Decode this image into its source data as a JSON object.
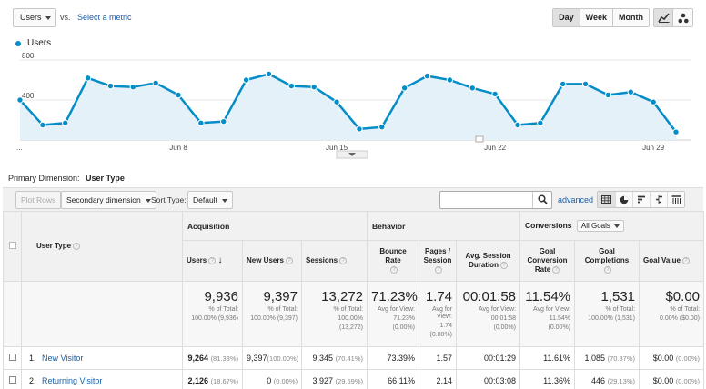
{
  "controls": {
    "metric_select": "Users",
    "vs_label": "vs.",
    "select_metric_link": "Select a metric",
    "range_buttons": [
      "Day",
      "Week",
      "Month"
    ],
    "active_range": "Day",
    "view_icons": [
      "line-chart-icon",
      "motion-chart-icon"
    ]
  },
  "chart_data": {
    "type": "area",
    "series": [
      {
        "name": "Users",
        "values": [
          400,
          150,
          170,
          620,
          540,
          530,
          570,
          450,
          170,
          185,
          600,
          660,
          540,
          530,
          380,
          110,
          130,
          520,
          640,
          600,
          520,
          460,
          150,
          170,
          560,
          560,
          450,
          480,
          380,
          80
        ]
      }
    ],
    "x_tick_labels": [
      "...",
      "Jun 8",
      "Jun 15",
      "Jun 22",
      "Jun 29"
    ],
    "y_tick_labels": [
      "800",
      "400"
    ],
    "ylim": [
      0,
      800
    ],
    "grid": true,
    "color": "#058dc7"
  },
  "primary_dimension": {
    "label": "Primary Dimension:",
    "value": "User Type"
  },
  "toolbar": {
    "plot_rows": "Plot Rows",
    "secondary_dimension": "Secondary dimension",
    "sort_type_label": "Sort Type:",
    "sort_type_value": "Default",
    "search_placeholder": "",
    "advanced_link": "advanced",
    "table_view_icons": [
      "data-table-icon",
      "pie-icon",
      "performance-icon",
      "comparison-icon",
      "pivot-icon"
    ]
  },
  "table": {
    "dimension_header": "User Type",
    "groups": {
      "acquisition": "Acquisition",
      "behavior": "Behavior",
      "conversions": "Conversions",
      "goals_select": "All Goals"
    },
    "columns": {
      "users": "Users",
      "new_users": "New Users",
      "sessions": "Sessions",
      "bounce_rate": "Bounce Rate",
      "pages_session": "Pages / Session",
      "avg_session": "Avg. Session Duration",
      "goal_conv": "Goal Conversion Rate",
      "goal_compl": "Goal Completions",
      "goal_value": "Goal Value"
    },
    "totals": {
      "users": {
        "value": "9,936",
        "l1": "% of Total:",
        "l2": "100.00% (9,936)",
        "l3": ""
      },
      "new_users": {
        "value": "9,397",
        "l1": "% of Total:",
        "l2": "100.00% (9,397)",
        "l3": ""
      },
      "sessions": {
        "value": "13,272",
        "l1": "% of Total:",
        "l2": "100.00%",
        "l3": "(13,272)"
      },
      "bounce_rate": {
        "value": "71.23%",
        "l1": "Avg for View:",
        "l2": "71.23%",
        "l3": "(0.00%)"
      },
      "pages_session": {
        "value": "1.74",
        "l1": "Avg for View:",
        "l2": "1.74",
        "l3": "(0.00%)"
      },
      "avg_session": {
        "value": "00:01:58",
        "l1": "Avg for View:",
        "l2": "00:01:58",
        "l3": "(0.00%)"
      },
      "goal_conv": {
        "value": "11.54%",
        "l1": "Avg for View:",
        "l2": "11.54%",
        "l3": "(0.00%)"
      },
      "goal_compl": {
        "value": "1,531",
        "l1": "% of Total:",
        "l2": "100.00% (1,531)",
        "l3": ""
      },
      "goal_value": {
        "value": "$0.00",
        "l1": "% of Total:",
        "l2": "0.00% ($0.00)",
        "l3": ""
      }
    },
    "rows": [
      {
        "num": "1.",
        "type": "New Visitor",
        "users": "9,264",
        "users_pct": "(81.33%)",
        "new_users": "9,397",
        "new_users_pct": "(100.00%)",
        "sessions": "9,345",
        "sessions_pct": "(70.41%)",
        "bounce_rate": "73.39%",
        "pages_session": "1.57",
        "avg_session": "00:01:29",
        "goal_conv": "11.61%",
        "goal_compl": "1,085",
        "goal_compl_pct": "(70.87%)",
        "goal_value": "$0.00",
        "goal_value_pct": "(0.00%)"
      },
      {
        "num": "2.",
        "type": "Returning Visitor",
        "users": "2,126",
        "users_pct": "(18.67%)",
        "new_users": "0",
        "new_users_pct": "(0.00%)",
        "sessions": "3,927",
        "sessions_pct": "(29.59%)",
        "bounce_rate": "66.11%",
        "pages_session": "2.14",
        "avg_session": "00:03:08",
        "goal_conv": "11.36%",
        "goal_compl": "446",
        "goal_compl_pct": "(29.13%)",
        "goal_value": "$0.00",
        "goal_value_pct": "(0.00%)"
      }
    ]
  }
}
